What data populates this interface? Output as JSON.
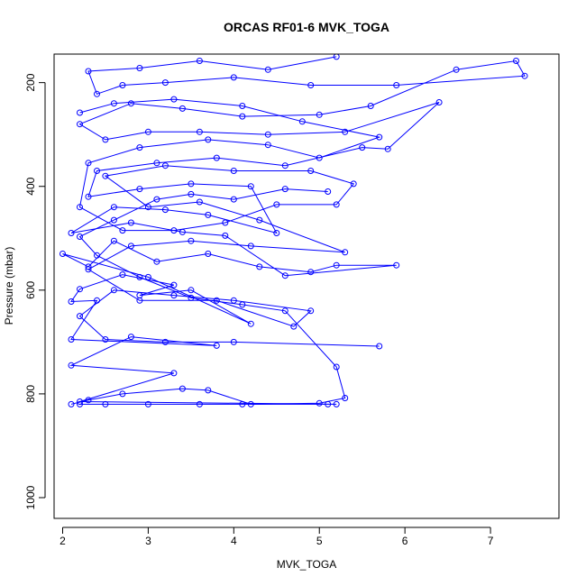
{
  "chart_data": {
    "type": "line",
    "title": "ORCAS RF01-6 MVK_TOGA",
    "xlabel": "MVK_TOGA",
    "ylabel": "Pressure (mbar)",
    "xlim": [
      1.9,
      7.8
    ],
    "ylim": [
      1040,
      145
    ],
    "y_reversed": true,
    "x_ticks": [
      2,
      3,
      4,
      5,
      6,
      7
    ],
    "y_ticks": [
      200,
      400,
      600,
      800,
      1000
    ],
    "grid": false,
    "legend": "none",
    "series_color": "#0000ff",
    "marker": "open-circle",
    "series": [
      {
        "points": [
          [
            2.2,
            820
          ],
          [
            2.5,
            820
          ],
          [
            3.0,
            820
          ],
          [
            3.6,
            820
          ],
          [
            4.1,
            820
          ],
          [
            5.1,
            820
          ],
          [
            5.2,
            820
          ],
          [
            2.2,
            815
          ],
          [
            3.3,
            760
          ],
          [
            2.1,
            745
          ],
          [
            2.8,
            690
          ],
          [
            3.8,
            707
          ],
          [
            2.1,
            695
          ],
          [
            2.4,
            620
          ],
          [
            2.1,
            622
          ],
          [
            2.2,
            598
          ],
          [
            2.7,
            570
          ],
          [
            3.3,
            590
          ],
          [
            2.9,
            610
          ],
          [
            3.5,
            600
          ],
          [
            4.2,
            665
          ],
          [
            3.0,
            575
          ],
          [
            2.0,
            530
          ],
          [
            2.3,
            555
          ],
          [
            2.6,
            505
          ],
          [
            3.1,
            545
          ],
          [
            3.7,
            530
          ],
          [
            4.3,
            555
          ],
          [
            4.9,
            565
          ],
          [
            5.2,
            552
          ],
          [
            5.9,
            552
          ],
          [
            4.6,
            572
          ],
          [
            3.9,
            495
          ],
          [
            3.4,
            488
          ],
          [
            2.8,
            470
          ],
          [
            2.1,
            490
          ],
          [
            2.6,
            440
          ],
          [
            3.2,
            445
          ],
          [
            3.7,
            455
          ],
          [
            4.5,
            490
          ],
          [
            4.2,
            400
          ],
          [
            3.5,
            395
          ],
          [
            2.9,
            405
          ],
          [
            2.3,
            420
          ],
          [
            2.4,
            370
          ],
          [
            3.1,
            355
          ],
          [
            3.8,
            345
          ],
          [
            4.6,
            360
          ],
          [
            5.5,
            325
          ],
          [
            5.8,
            328
          ],
          [
            6.4,
            238
          ],
          [
            5.3,
            295
          ],
          [
            4.4,
            300
          ],
          [
            3.6,
            295
          ],
          [
            3.0,
            295
          ],
          [
            2.5,
            310
          ],
          [
            2.2,
            280
          ],
          [
            2.8,
            240
          ],
          [
            3.4,
            250
          ],
          [
            4.1,
            265
          ],
          [
            5.0,
            262
          ],
          [
            5.6,
            245
          ],
          [
            6.6,
            175
          ],
          [
            7.3,
            158
          ],
          [
            7.4,
            187
          ],
          [
            5.9,
            205
          ],
          [
            4.9,
            205
          ],
          [
            4.0,
            190
          ],
          [
            3.2,
            200
          ],
          [
            2.7,
            205
          ],
          [
            2.4,
            222
          ],
          [
            2.3,
            178
          ],
          [
            2.9,
            172
          ],
          [
            3.6,
            158
          ],
          [
            4.4,
            175
          ],
          [
            5.2,
            150
          ]
        ]
      },
      {
        "points": [
          [
            5.7,
            708
          ],
          [
            4.0,
            700
          ],
          [
            3.2,
            700
          ],
          [
            2.5,
            695
          ],
          [
            2.2,
            650
          ],
          [
            2.6,
            600
          ],
          [
            3.3,
            610
          ],
          [
            4.0,
            620
          ],
          [
            4.9,
            640
          ],
          [
            4.7,
            670
          ],
          [
            3.8,
            620
          ],
          [
            2.9,
            620
          ],
          [
            2.3,
            560
          ],
          [
            2.8,
            515
          ],
          [
            3.5,
            505
          ],
          [
            4.2,
            515
          ],
          [
            5.3,
            527
          ],
          [
            4.3,
            465
          ],
          [
            3.6,
            430
          ],
          [
            3.0,
            440
          ],
          [
            2.5,
            380
          ],
          [
            3.2,
            360
          ],
          [
            4.0,
            370
          ],
          [
            4.9,
            370
          ],
          [
            5.4,
            395
          ],
          [
            5.2,
            435
          ],
          [
            4.5,
            435
          ],
          [
            3.9,
            470
          ],
          [
            3.3,
            485
          ],
          [
            2.7,
            485
          ],
          [
            2.2,
            440
          ],
          [
            2.3,
            355
          ],
          [
            2.9,
            325
          ],
          [
            3.7,
            310
          ],
          [
            4.4,
            320
          ],
          [
            5.0,
            345
          ],
          [
            5.7,
            305
          ],
          [
            4.8,
            275
          ],
          [
            4.1,
            245
          ],
          [
            3.3,
            232
          ],
          [
            2.6,
            240
          ],
          [
            2.2,
            258
          ]
        ]
      },
      {
        "points": [
          [
            2.1,
            820
          ],
          [
            2.3,
            812
          ],
          [
            2.7,
            800
          ],
          [
            3.4,
            790
          ],
          [
            3.7,
            793
          ],
          [
            4.2,
            820
          ],
          [
            5.0,
            818
          ],
          [
            5.3,
            808
          ],
          [
            5.2,
            748
          ],
          [
            4.6,
            640
          ],
          [
            4.1,
            628
          ],
          [
            3.5,
            615
          ],
          [
            2.9,
            575
          ],
          [
            2.4,
            533
          ],
          [
            2.2,
            497
          ],
          [
            2.6,
            465
          ],
          [
            3.1,
            425
          ],
          [
            3.5,
            415
          ],
          [
            4.0,
            425
          ],
          [
            4.6,
            405
          ],
          [
            5.1,
            410
          ]
        ]
      }
    ]
  }
}
